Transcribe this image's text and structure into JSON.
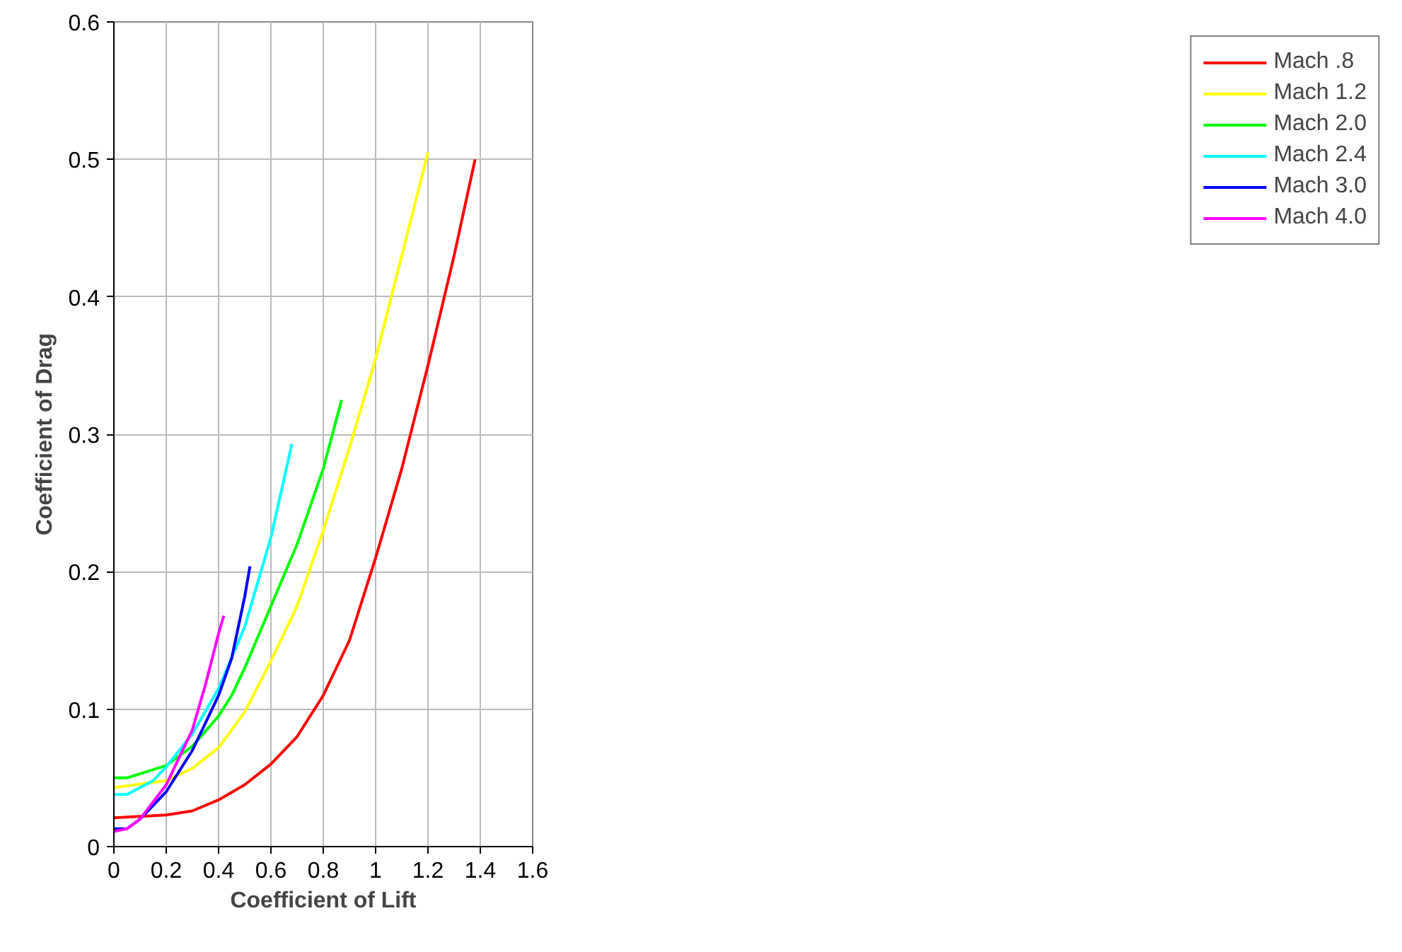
{
  "chart_data": {
    "type": "line",
    "xlabel": "Coefficient of Lift",
    "ylabel": "Coefficient of Drag",
    "xlim": [
      0,
      1.6
    ],
    "ylim": [
      0,
      0.6
    ],
    "xticks": [
      {
        "value": 0,
        "label": "0"
      },
      0.2,
      0.4,
      0.6,
      0.8,
      {
        "value": 1,
        "label": "1"
      },
      1.2,
      1.4,
      1.6
    ],
    "yticks": [
      {
        "value": 0,
        "label": "0"
      },
      0.1,
      0.2,
      0.3,
      0.4,
      0.5,
      0.6
    ],
    "grid": true,
    "legend": "right",
    "line_style": "solid",
    "series": [
      {
        "name": "Mach .8",
        "color": "#ff0000",
        "x": [
          0,
          0.2,
          0.3,
          0.4,
          0.5,
          0.6,
          0.7,
          0.8,
          0.9,
          1.0,
          1.1,
          1.2,
          1.3,
          1.38
        ],
        "values": [
          0.021,
          0.023,
          0.026,
          0.034,
          0.045,
          0.06,
          0.08,
          0.11,
          0.15,
          0.21,
          0.275,
          0.35,
          0.43,
          0.5
        ]
      },
      {
        "name": "Mach 1.2",
        "color": "#ffff00",
        "x": [
          0,
          0.2,
          0.3,
          0.4,
          0.5,
          0.6,
          0.7,
          0.8,
          0.9,
          1.0,
          1.1,
          1.2
        ],
        "values": [
          0.043,
          0.048,
          0.057,
          0.072,
          0.098,
          0.135,
          0.175,
          0.23,
          0.29,
          0.355,
          0.43,
          0.505
        ]
      },
      {
        "name": "Mach 2.0",
        "color": "#00ff00",
        "x": [
          0,
          0.05,
          0.2,
          0.3,
          0.4,
          0.45,
          0.5,
          0.6,
          0.7,
          0.8,
          0.87
        ],
        "values": [
          0.05,
          0.05,
          0.059,
          0.073,
          0.095,
          0.11,
          0.13,
          0.175,
          0.22,
          0.275,
          0.325
        ]
      },
      {
        "name": "Mach 2.4",
        "color": "#00ffff",
        "x": [
          0,
          0.05,
          0.15,
          0.2,
          0.3,
          0.4,
          0.5,
          0.6,
          0.68
        ],
        "values": [
          0.038,
          0.038,
          0.048,
          0.058,
          0.082,
          0.115,
          0.16,
          0.225,
          0.293
        ]
      },
      {
        "name": "Mach 3.0",
        "color": "#0000ff",
        "x": [
          0,
          0.05,
          0.1,
          0.2,
          0.3,
          0.4,
          0.45,
          0.5,
          0.52
        ],
        "values": [
          0.013,
          0.013,
          0.02,
          0.04,
          0.07,
          0.11,
          0.137,
          0.182,
          0.204
        ]
      },
      {
        "name": "Mach 4.0",
        "color": "#ff00ff",
        "x": [
          0,
          0.05,
          0.1,
          0.2,
          0.3,
          0.35,
          0.4,
          0.42
        ],
        "values": [
          0.011,
          0.013,
          0.02,
          0.045,
          0.085,
          0.118,
          0.155,
          0.168
        ]
      }
    ]
  }
}
